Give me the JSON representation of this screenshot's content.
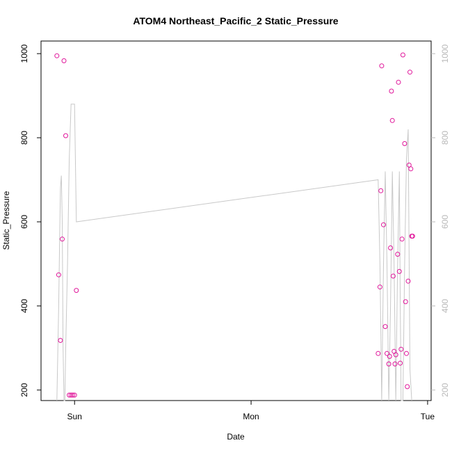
{
  "chart_data": {
    "type": "scatter",
    "title": "ATOM4 Northeast_Pacific_2 Static_Pressure",
    "xlabel": "Date",
    "ylabel": "Static_Pressure",
    "x_ticks": [
      "Sun",
      "Mon",
      "Tue"
    ],
    "x_tick_positions": [
      0,
      1,
      2
    ],
    "xlim": [
      -0.19,
      2.02
    ],
    "ylim": [
      175,
      1030
    ],
    "y_ticks": [
      200,
      400,
      600,
      800,
      1000
    ],
    "y2_ticks": [
      200,
      400,
      600,
      800,
      1000
    ],
    "y2_reversed": true,
    "y2lim": [
      1030,
      175
    ],
    "grid": false,
    "legend": "none",
    "point_color": "#e0169a",
    "line_color": "#c8c8c8",
    "series": [
      {
        "type": "points",
        "x_days": [
          -0.1,
          -0.09,
          -0.08,
          -0.07,
          -0.06,
          -0.05,
          -0.03,
          -0.02,
          -0.01,
          0.0,
          0.01,
          1.72,
          1.73,
          1.735,
          1.74,
          1.75,
          1.76,
          1.77,
          1.78,
          1.785,
          1.79,
          1.795,
          1.8,
          1.805,
          1.81,
          1.815,
          1.82,
          1.83,
          1.835,
          1.84,
          1.845,
          1.85,
          1.855,
          1.86,
          1.87,
          1.875,
          1.88,
          1.885,
          1.89,
          1.895,
          1.9,
          1.905,
          1.91,
          1.915
        ],
        "y": [
          995,
          474,
          318,
          559,
          983,
          805,
          188,
          188,
          188,
          188,
          437,
          287,
          445,
          674,
          971,
          593,
          351,
          287,
          262,
          280,
          538,
          911,
          841,
          471,
          292,
          262,
          284,
          523,
          932,
          482,
          264,
          297,
          559,
          997,
          786,
          410,
          287,
          208,
          459,
          735,
          956,
          726,
          566,
          566
        ]
      },
      {
        "type": "line",
        "x_days": [
          -0.1,
          -0.09,
          -0.085,
          -0.08,
          -0.075,
          -0.07,
          -0.065,
          -0.06,
          -0.055,
          -0.05,
          -0.04,
          -0.03,
          -0.02,
          -0.01,
          0.0,
          0.01,
          1.72,
          1.73,
          1.74,
          1.75,
          1.76,
          1.77,
          1.78,
          1.79,
          1.8,
          1.81,
          1.82,
          1.83,
          1.84,
          1.845,
          1.85,
          1.86,
          1.87,
          1.88,
          1.89,
          1.9,
          1.91
        ],
        "depth": [
          100,
          400,
          550,
          680,
          710,
          600,
          300,
          100,
          60,
          300,
          500,
          750,
          880,
          880,
          880,
          600,
          700,
          500,
          100,
          500,
          720,
          500,
          100,
          400,
          720,
          500,
          100,
          500,
          720,
          400,
          150,
          100,
          500,
          750,
          820,
          250,
          100
        ]
      }
    ]
  }
}
